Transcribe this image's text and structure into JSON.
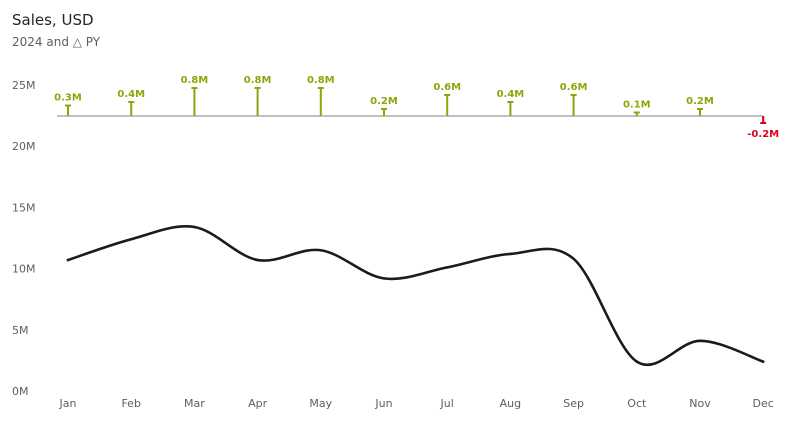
{
  "header": {
    "title": "Sales, USD",
    "subtitle": "2024 and △ PY"
  },
  "colors": {
    "line": "#1b1b1b",
    "positive": "#8aa80a",
    "negative": "#e0001b",
    "baseline": "#808080",
    "tick_text": "#605e5c"
  },
  "chart_data": {
    "type": "line",
    "categories": [
      "Jan",
      "Feb",
      "Mar",
      "Apr",
      "May",
      "Jun",
      "Jul",
      "Aug",
      "Sep",
      "Oct",
      "Nov",
      "Dec"
    ],
    "series": [
      {
        "values": [
          10.7,
          12.4,
          13.4,
          10.7,
          11.5,
          9.2,
          10.1,
          11.2,
          10.8,
          2.4,
          4.1,
          2.4
        ]
      }
    ],
    "yticks": [
      "0M",
      "5M",
      "10M",
      "15M",
      "20M",
      "25M"
    ],
    "ytick_values": [
      0,
      5,
      10,
      15,
      20,
      25
    ],
    "ylim": [
      0,
      25
    ],
    "grid": false,
    "variance": {
      "values": [
        0.3,
        0.4,
        0.8,
        0.8,
        0.8,
        0.2,
        0.6,
        0.4,
        0.6,
        0.1,
        0.2,
        -0.2
      ],
      "labels": [
        "0.3M",
        "0.4M",
        "0.8M",
        "0.8M",
        "0.8M",
        "0.2M",
        "0.6M",
        "0.4M",
        "0.6M",
        "0.1M",
        "0.2M",
        "-0.2M"
      ]
    }
  }
}
